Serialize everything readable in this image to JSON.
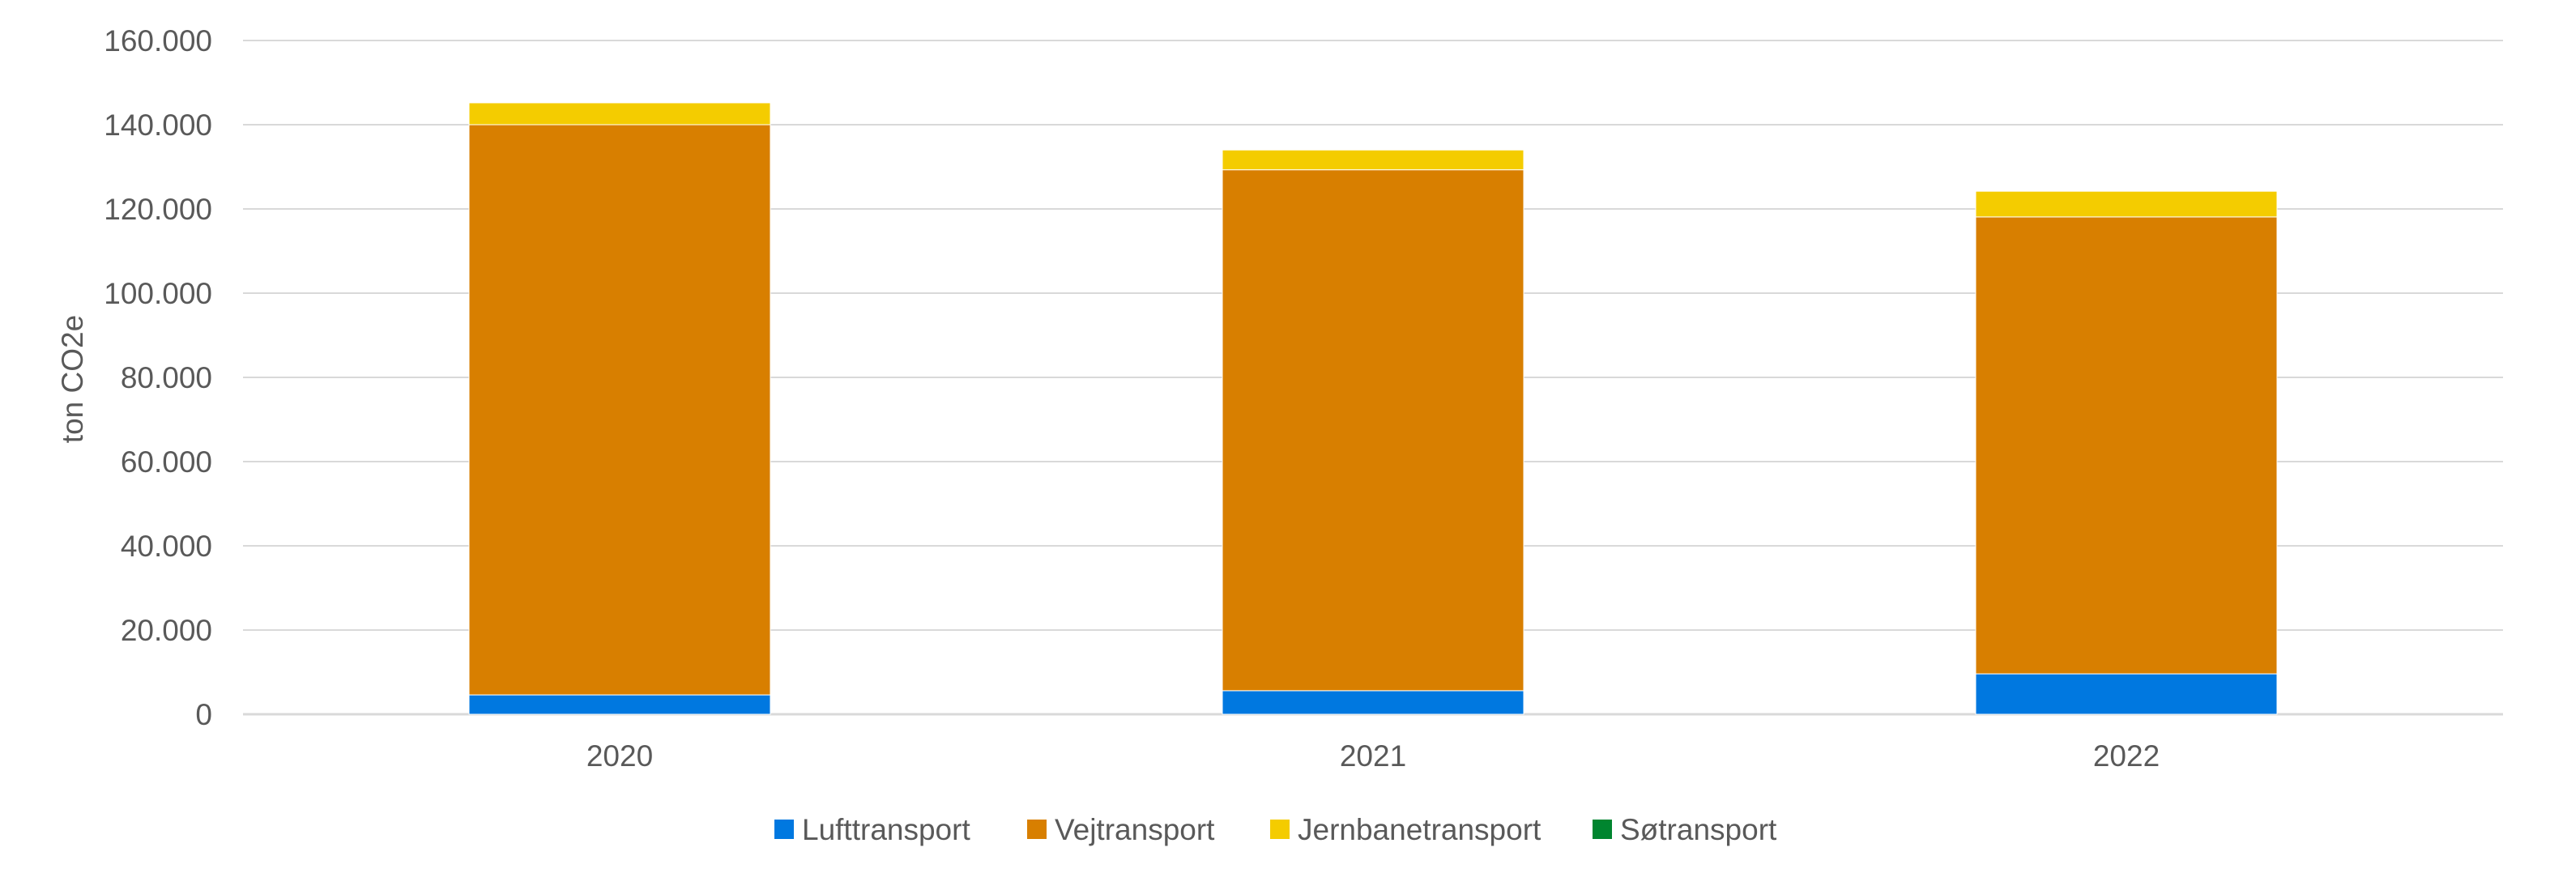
{
  "chart_data": {
    "type": "bar",
    "stacked": true,
    "title": "",
    "xlabel": "",
    "ylabel": "ton CO2e",
    "ylim": [
      0,
      160000
    ],
    "yticks": [
      0,
      20000,
      40000,
      60000,
      80000,
      100000,
      120000,
      140000,
      160000
    ],
    "ytick_labels": [
      "0",
      "20.000",
      "40.000",
      "60.000",
      "80.000",
      "100.000",
      "120.000",
      "140.000",
      "160.000"
    ],
    "grid": true,
    "legend_position": "bottom",
    "categories": [
      "2020",
      "2021",
      "2022"
    ],
    "series": [
      {
        "name": "Lufttransport",
        "color": "#0078E0",
        "values": [
          4600,
          5600,
          9600
        ]
      },
      {
        "name": "Vejtransport",
        "color": "#D87F00",
        "values": [
          135400,
          123700,
          108500
        ]
      },
      {
        "name": "Jernbanetransport",
        "color": "#F4CC00",
        "values": [
          5200,
          4700,
          6100
        ]
      },
      {
        "name": "Søtransport",
        "color": "#00852F",
        "values": [
          0,
          0,
          0
        ]
      }
    ]
  }
}
